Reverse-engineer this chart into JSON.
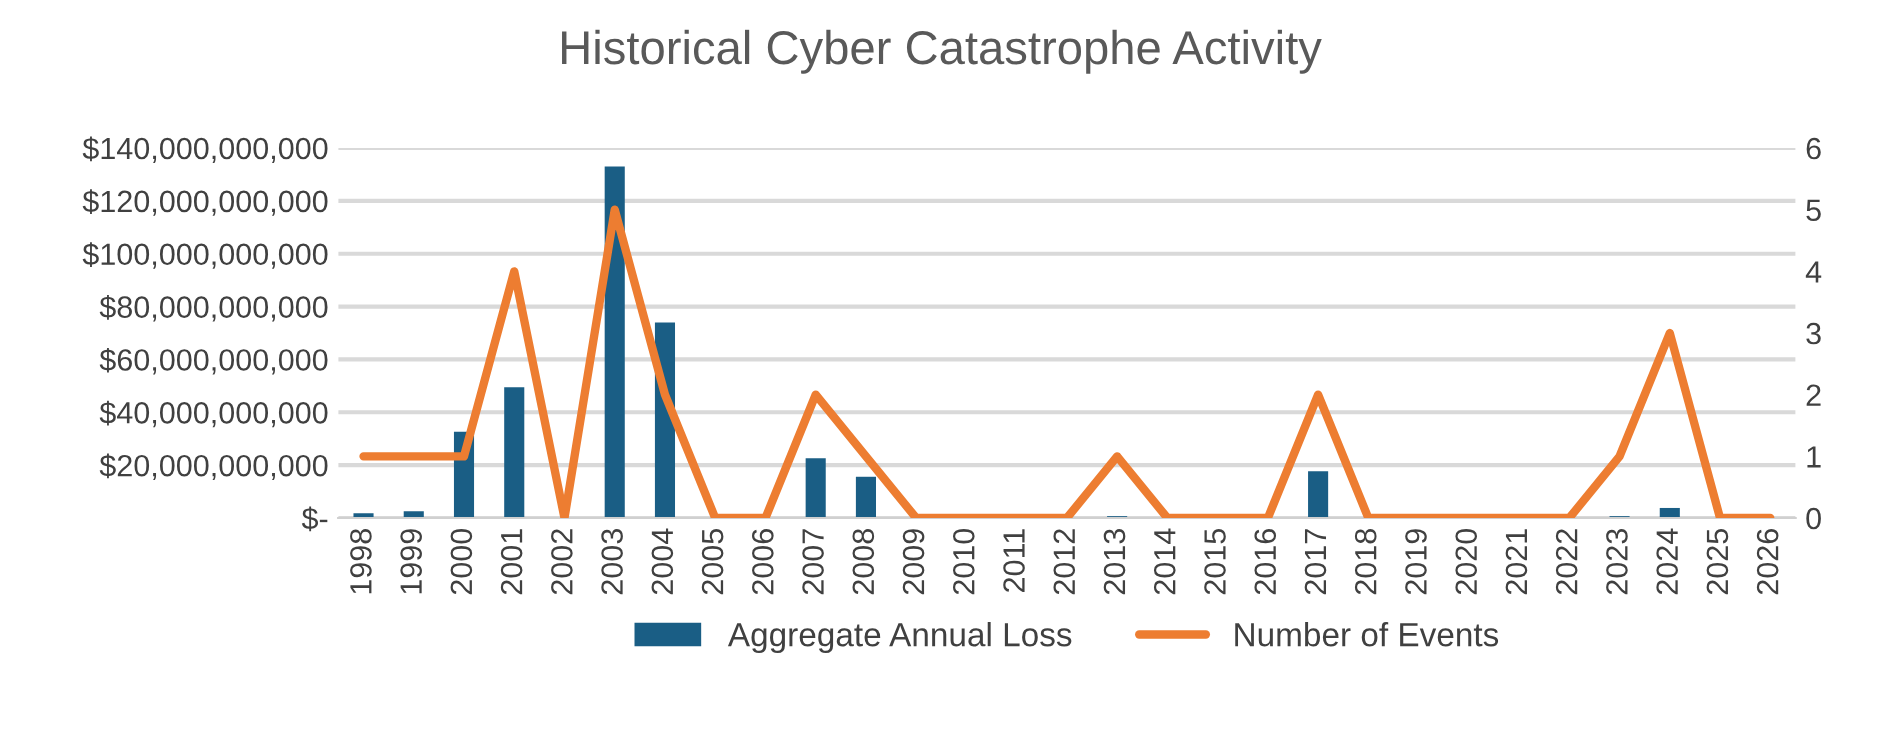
{
  "chart_data": {
    "type": "bar",
    "title": "Historical Cyber Catastrophe Activity",
    "categories": [
      "1998",
      "1999",
      "2000",
      "2001",
      "2002",
      "2003",
      "2004",
      "2005",
      "2006",
      "2007",
      "2008",
      "2009",
      "2010",
      "2011",
      "2012",
      "2013",
      "2014",
      "2015",
      "2016",
      "2017",
      "2018",
      "2019",
      "2020",
      "2021",
      "2022",
      "2023",
      "2024",
      "2025",
      "2026"
    ],
    "series": [
      {
        "name": "Aggregate Annual Loss",
        "color": "#1a5e85",
        "values": [
          1800000000,
          2600000000,
          32600000000,
          49500000000,
          0,
          133000000000,
          74000000000,
          0,
          0,
          22600000000,
          15600000000,
          0,
          0,
          0,
          0,
          700000000,
          0,
          0,
          0,
          17700000000,
          0,
          0,
          0,
          0,
          0,
          700000000,
          3800000000,
          0,
          0
        ]
      },
      {
        "name": "Number of Events",
        "type": "line",
        "axis": "y2",
        "color": "#ed7d31",
        "values": [
          1,
          1,
          1,
          4,
          0,
          5,
          2,
          0,
          0,
          2,
          1,
          0,
          0,
          0,
          0,
          1,
          0,
          0,
          0,
          2,
          0,
          0,
          0,
          0,
          0,
          1,
          3,
          0,
          0
        ]
      }
    ],
    "ylim": [
      0,
      140000000000
    ],
    "yticks": [
      {
        "value": 0,
        "label": "$-"
      },
      {
        "value": 20000000000,
        "label": "$20,000,000,000"
      },
      {
        "value": 40000000000,
        "label": "$40,000,000,000"
      },
      {
        "value": 60000000000,
        "label": "$60,000,000,000"
      },
      {
        "value": 80000000000,
        "label": "$80,000,000,000"
      },
      {
        "value": 100000000000,
        "label": "$100,000,000,000"
      },
      {
        "value": 120000000000,
        "label": "$120,000,000,000"
      },
      {
        "value": 140000000000,
        "label": "$140,000,000,000"
      }
    ],
    "y2lim": [
      0,
      6
    ],
    "y2ticks": [
      0,
      1,
      2,
      3,
      4,
      5,
      6
    ],
    "grid": "y",
    "legend": "bottom"
  }
}
